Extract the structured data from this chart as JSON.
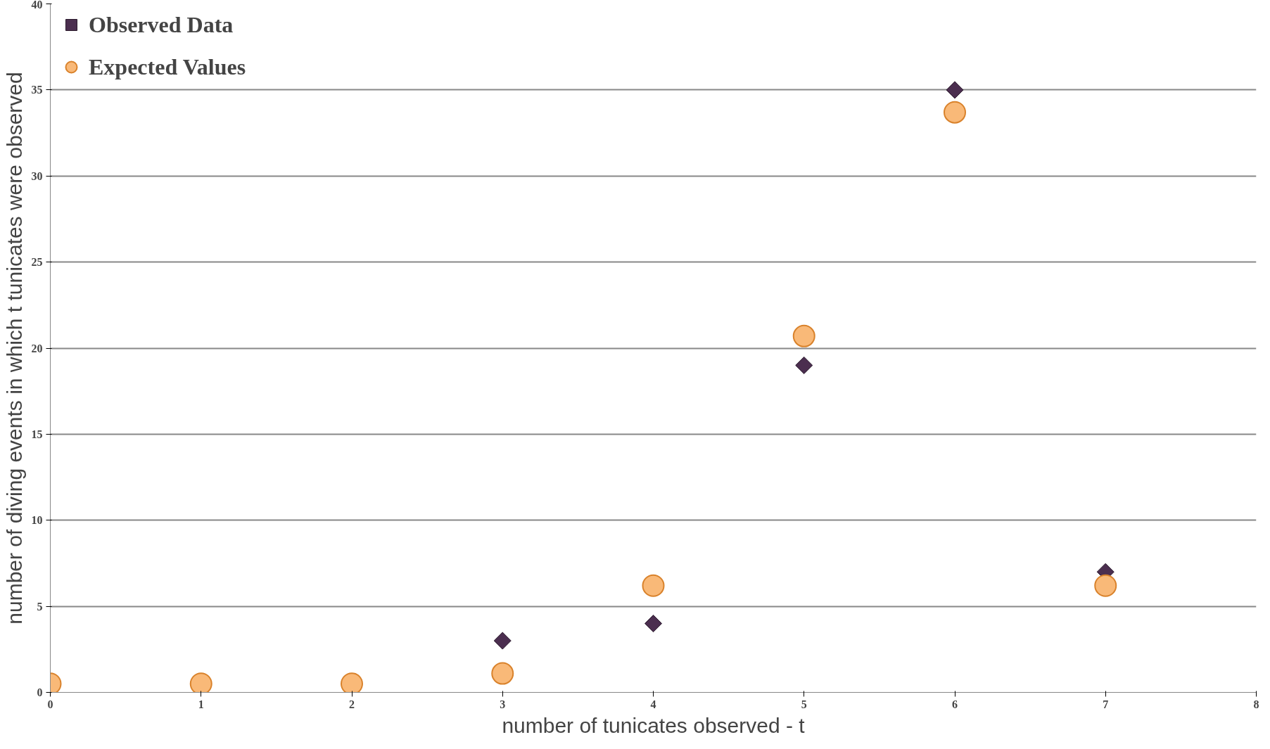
{
  "chart_data": {
    "type": "scatter",
    "xlabel": "number of tunicates observed - t",
    "ylabel": "number of diving events in which t tunicates were observed",
    "xlim": [
      0,
      8
    ],
    "xticks": [
      0,
      1,
      2,
      3,
      4,
      5,
      6,
      7,
      8
    ],
    "ylim": [
      0,
      40
    ],
    "yticks": [
      0,
      5,
      10,
      15,
      20,
      25,
      30,
      35,
      40
    ],
    "grid": "y",
    "legend": "top left",
    "series": [
      {
        "name": "Observed Data",
        "color": "#4b2e4f",
        "marker": "diamond",
        "x": [
          3,
          4,
          5,
          6,
          7
        ],
        "values": [
          3,
          4,
          19,
          35,
          7
        ]
      },
      {
        "name": "Expected Values",
        "color": "#f9b978",
        "marker": "circle",
        "x": [
          0,
          1,
          2,
          3,
          4,
          5,
          6,
          7
        ],
        "values": [
          0.5,
          0.5,
          0.5,
          1.1,
          6.2,
          20.7,
          33.7,
          6.2
        ]
      }
    ]
  }
}
